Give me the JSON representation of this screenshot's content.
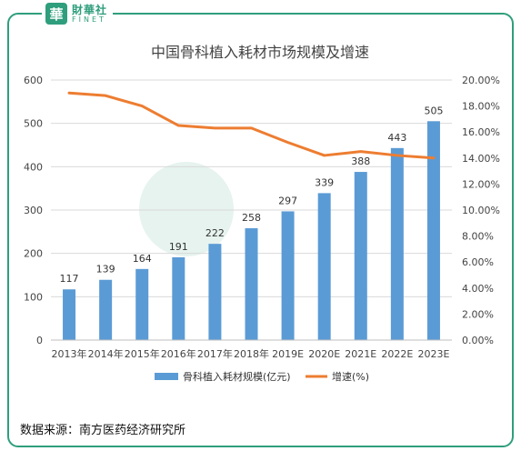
{
  "brand": {
    "name_cn": "財華社",
    "name_en": "FINET",
    "seal_char": "華"
  },
  "source_note": "数据来源：南方医药经济研究所",
  "colors": {
    "bar": "#5b9bd5",
    "line": "#ed7d31",
    "brand": "#2f9e7c"
  },
  "chart_data": {
    "type": "bar",
    "title": "中国骨科植入耗材市场规模及增速",
    "categories": [
      "2013年",
      "2014年",
      "2015年",
      "2016年",
      "2017年",
      "2018年",
      "2019E",
      "2020E",
      "2021E",
      "2022E",
      "2023E"
    ],
    "series": [
      {
        "name": "骨科植入耗材规模(亿元)",
        "type": "bar",
        "axis": "left",
        "values": [
          117,
          139,
          164,
          191,
          222,
          258,
          297,
          339,
          388,
          443,
          505
        ]
      },
      {
        "name": "增速(%)",
        "type": "line",
        "axis": "right",
        "values": [
          19.0,
          18.8,
          18.0,
          16.5,
          16.3,
          16.3,
          15.2,
          14.2,
          14.5,
          14.2,
          14.0
        ]
      }
    ],
    "y_left": {
      "min": 0,
      "max": 600,
      "ticks": [
        "0",
        "100",
        "200",
        "300",
        "400",
        "500",
        "600"
      ]
    },
    "y_right": {
      "min": 0,
      "max": 20,
      "ticks": [
        "0.00%",
        "2.00%",
        "4.00%",
        "6.00%",
        "8.00%",
        "10.00%",
        "12.00%",
        "14.00%",
        "16.00%",
        "18.00%",
        "20.00%"
      ]
    },
    "grid": true,
    "legend": "bottom"
  }
}
